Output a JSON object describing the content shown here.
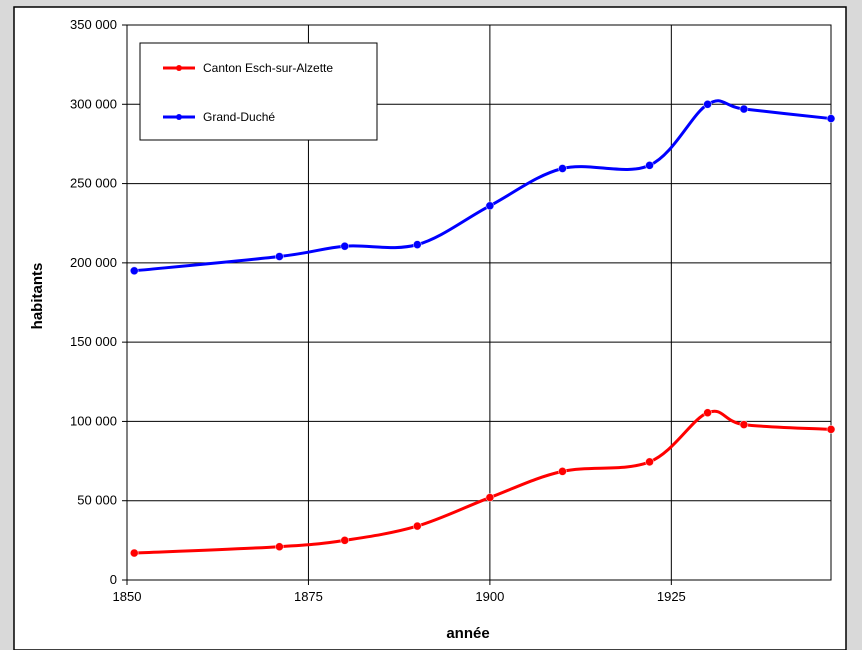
{
  "chart_data": {
    "type": "line",
    "title": "",
    "xlabel": "année",
    "ylabel": "habitants",
    "xlim": [
      1850,
      1947
    ],
    "ylim": [
      0,
      350000
    ],
    "xticks": [
      1850,
      1875,
      1900,
      1925
    ],
    "xtick_labels": [
      "1850",
      "1875",
      "1900",
      "1925"
    ],
    "yticks": [
      0,
      50000,
      100000,
      150000,
      200000,
      250000,
      300000,
      350000
    ],
    "ytick_labels": [
      "0",
      "50 000",
      "100 000",
      "150 000",
      "200 000",
      "250 000",
      "300 000",
      "350 000"
    ],
    "grid": true,
    "legend_position": "top-left",
    "smoothed": true,
    "series": [
      {
        "name": "Canton Esch-sur-Alzette",
        "color": "#ff0000",
        "x": [
          1851,
          1871,
          1880,
          1890,
          1900,
          1910,
          1922,
          1930,
          1935,
          1947
        ],
        "values": [
          17000,
          21000,
          25000,
          34000,
          52000,
          68500,
          74500,
          105500,
          98000,
          95000
        ]
      },
      {
        "name": "Grand-Duché",
        "color": "#0000ff",
        "x": [
          1851,
          1871,
          1880,
          1890,
          1900,
          1910,
          1922,
          1930,
          1935,
          1947
        ],
        "values": [
          195000,
          204000,
          210500,
          211500,
          236000,
          259500,
          261500,
          300000,
          297000,
          291000
        ]
      }
    ]
  }
}
